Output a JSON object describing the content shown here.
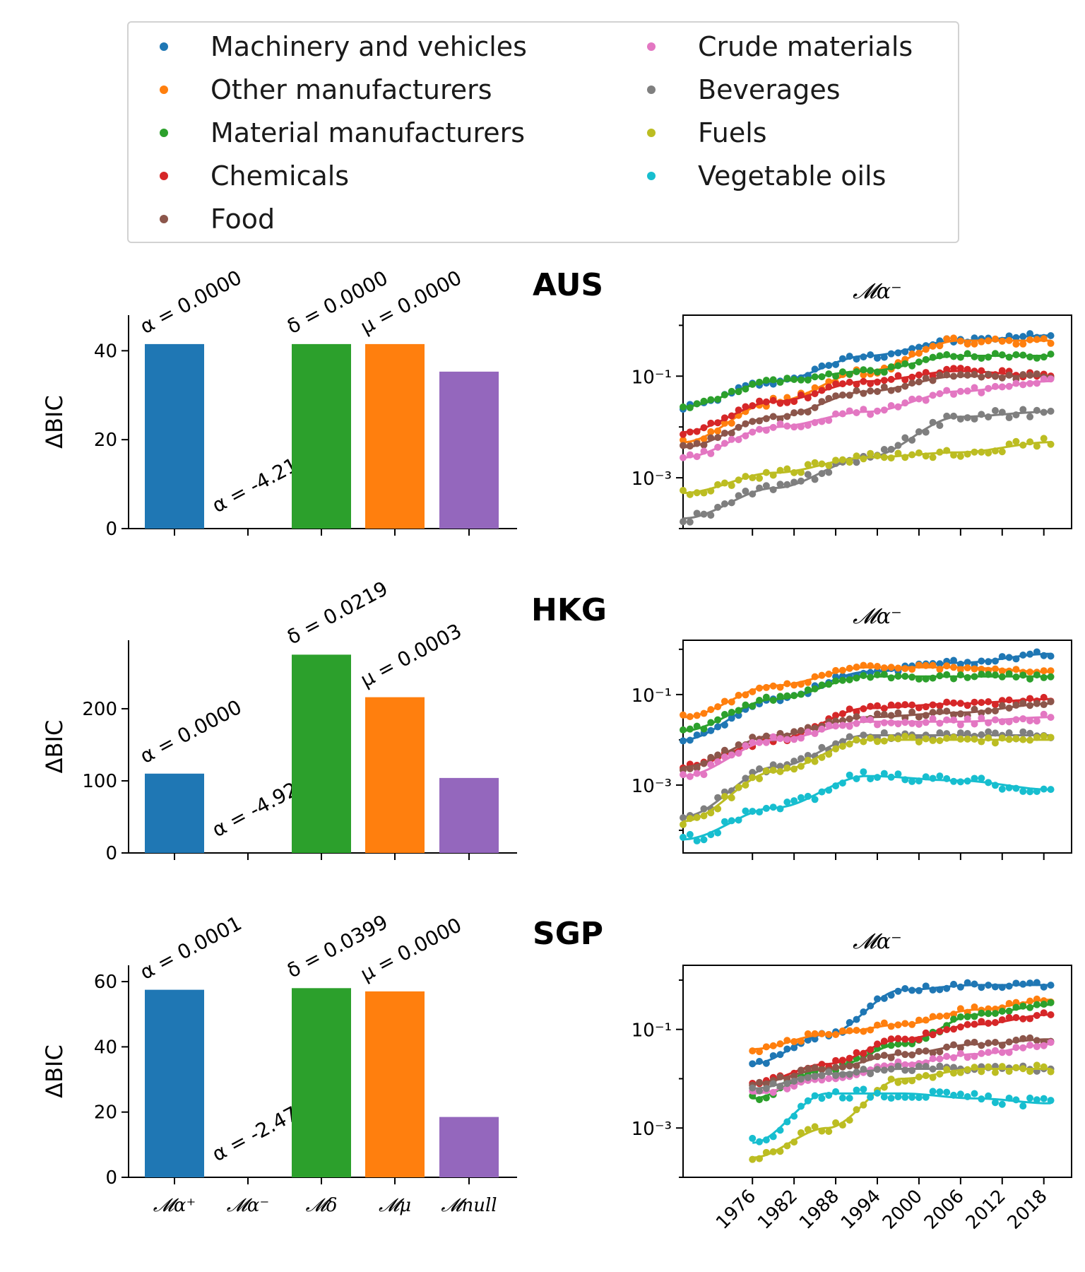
{
  "legend": {
    "items": [
      {
        "label": "Machinery and vehicles",
        "color": "#1f77b4"
      },
      {
        "label": "Other manufacturers",
        "color": "#ff7f0e"
      },
      {
        "label": "Material manufacturers",
        "color": "#2ca02c"
      },
      {
        "label": "Chemicals",
        "color": "#d62728"
      },
      {
        "label": "Food",
        "color": "#8c564b"
      },
      {
        "label": "Crude materials",
        "color": "#e377c2"
      },
      {
        "label": "Beverages",
        "color": "#7f7f7f"
      },
      {
        "label": "Fuels",
        "color": "#bcbd22"
      },
      {
        "label": "Vegetable oils",
        "color": "#17becf"
      }
    ]
  },
  "chart_data": [
    {
      "type": "bar",
      "panel": "AUS",
      "ylabel": "ΔBIC",
      "ylim": [
        0,
        48
      ],
      "yticks": [
        0,
        20,
        40
      ],
      "bars": [
        {
          "value": 41.5,
          "color": "#1f77b4",
          "annotation": "α = 0.0000",
          "note_pos": "top"
        },
        {
          "value": 0,
          "color": "#d62728",
          "annotation": "α = -4.2143",
          "note_pos": "low"
        },
        {
          "value": 41.5,
          "color": "#2ca02c",
          "annotation": "δ = 0.0000",
          "note_pos": "top"
        },
        {
          "value": 41.5,
          "color": "#ff7f0e",
          "annotation": "μ = 0.0000",
          "note_pos": "top"
        },
        {
          "value": 35.3,
          "color": "#9467bd",
          "annotation": "",
          "note_pos": "top"
        }
      ]
    },
    {
      "type": "line",
      "panel": "AUS",
      "title": "𝓜α⁻",
      "yscale": "log",
      "ylim_log10": [
        -4,
        0.2
      ],
      "yticks": [
        {
          "value": -1,
          "label": "10⁻¹"
        },
        {
          "value": -3,
          "label": "10⁻³"
        }
      ],
      "xlim": [
        1966,
        2022
      ],
      "series": [
        {
          "color": "#1f77b4",
          "start": 1966,
          "end": 2019,
          "fit": [
            -1.6,
            -1.1,
            -0.6,
            -0.3,
            -0.2
          ],
          "jitter": 0.06
        },
        {
          "color": "#ff7f0e",
          "start": 1966,
          "end": 2019,
          "fit": [
            -2.3,
            -1.5,
            -0.9,
            -0.3,
            -0.3
          ],
          "jitter": 0.08
        },
        {
          "color": "#2ca02c",
          "start": 1966,
          "end": 2019,
          "fit": [
            -1.6,
            -1.1,
            -0.9,
            -0.6,
            -0.6
          ],
          "jitter": 0.05
        },
        {
          "color": "#d62728",
          "start": 1966,
          "end": 2019,
          "fit": [
            -2.1,
            -1.5,
            -1.1,
            -0.9,
            -1.0
          ],
          "jitter": 0.06
        },
        {
          "color": "#8c564b",
          "start": 1966,
          "end": 2019,
          "fit": [
            -2.4,
            -1.8,
            -1.3,
            -1.0,
            -1.0
          ],
          "jitter": 0.06
        },
        {
          "color": "#e377c2",
          "start": 1966,
          "end": 2019,
          "fit": [
            -2.6,
            -2.0,
            -1.7,
            -1.3,
            -1.1
          ],
          "jitter": 0.06
        },
        {
          "color": "#7f7f7f",
          "start": 1966,
          "end": 2019,
          "fit": [
            -3.8,
            -3.2,
            -2.6,
            -1.8,
            -1.7
          ],
          "jitter": 0.09
        },
        {
          "color": "#bcbd22",
          "start": 1966,
          "end": 2019,
          "fit": [
            -3.3,
            -2.9,
            -2.6,
            -2.5,
            -2.3
          ],
          "jitter": 0.08
        }
      ]
    },
    {
      "type": "bar",
      "panel": "HKG",
      "ylabel": "ΔBIC",
      "ylim": [
        0,
        295
      ],
      "yticks": [
        0,
        100,
        200
      ],
      "bars": [
        {
          "value": 110,
          "color": "#1f77b4",
          "annotation": "α = 0.0000",
          "note_pos": "top"
        },
        {
          "value": 0,
          "color": "#d62728",
          "annotation": "α = -4.9263",
          "note_pos": "low"
        },
        {
          "value": 275,
          "color": "#2ca02c",
          "annotation": "δ = 0.0219",
          "note_pos": "top"
        },
        {
          "value": 216,
          "color": "#ff7f0e",
          "annotation": "μ = 0.0003",
          "note_pos": "top"
        },
        {
          "value": 104,
          "color": "#9467bd",
          "annotation": "",
          "note_pos": "top"
        }
      ]
    },
    {
      "type": "line",
      "panel": "HKG",
      "title": "𝓜α⁻",
      "yscale": "log",
      "ylim_log10": [
        -4.5,
        0.2
      ],
      "yticks": [
        {
          "value": -1,
          "label": "10⁻¹"
        },
        {
          "value": -3,
          "label": "10⁻³"
        }
      ],
      "xlim": [
        1966,
        2022
      ],
      "series": [
        {
          "color": "#1f77b4",
          "start": 1966,
          "end": 2019,
          "fit": [
            -2.0,
            -1.1,
            -0.5,
            -0.3,
            -0.1
          ],
          "jitter": 0.06
        },
        {
          "color": "#ff7f0e",
          "start": 1966,
          "end": 2019,
          "fit": [
            -1.5,
            -0.8,
            -0.4,
            -0.4,
            -0.5
          ],
          "jitter": 0.05
        },
        {
          "color": "#2ca02c",
          "start": 1966,
          "end": 2019,
          "fit": [
            -1.8,
            -1.1,
            -0.6,
            -0.6,
            -0.6
          ],
          "jitter": 0.06
        },
        {
          "color": "#d62728",
          "start": 1966,
          "end": 2019,
          "fit": [
            -2.6,
            -2.0,
            -1.3,
            -1.2,
            -1.1
          ],
          "jitter": 0.06
        },
        {
          "color": "#8c564b",
          "start": 1966,
          "end": 2019,
          "fit": [
            -2.6,
            -1.9,
            -1.5,
            -1.4,
            -1.2
          ],
          "jitter": 0.07
        },
        {
          "color": "#e377c2",
          "start": 1966,
          "end": 2019,
          "fit": [
            -2.8,
            -2.0,
            -1.6,
            -1.6,
            -1.5
          ],
          "jitter": 0.08
        },
        {
          "color": "#7f7f7f",
          "start": 1966,
          "end": 2019,
          "fit": [
            -3.7,
            -2.6,
            -1.9,
            -1.9,
            -1.9
          ],
          "jitter": 0.08
        },
        {
          "color": "#bcbd22",
          "start": 1966,
          "end": 2019,
          "fit": [
            -3.8,
            -2.7,
            -2.0,
            -2.0,
            -2.0
          ],
          "jitter": 0.08
        },
        {
          "color": "#17becf",
          "start": 1966,
          "end": 2019,
          "fit": [
            -4.2,
            -3.5,
            -2.8,
            -2.9,
            -3.1
          ],
          "jitter": 0.1
        }
      ]
    },
    {
      "type": "bar",
      "panel": "SGP",
      "ylabel": "ΔBIC",
      "ylim": [
        0,
        65
      ],
      "yticks": [
        0,
        20,
        40,
        60
      ],
      "xticklabels": [
        "𝓜α⁺",
        "𝓜α⁻",
        "𝓜δ",
        "𝓜μ",
        "𝓜null"
      ],
      "bars": [
        {
          "value": 57.5,
          "color": "#1f77b4",
          "annotation": "α = 0.0001",
          "note_pos": "top"
        },
        {
          "value": 0,
          "color": "#d62728",
          "annotation": "α = -2.4786",
          "note_pos": "low"
        },
        {
          "value": 58,
          "color": "#2ca02c",
          "annotation": "δ = 0.0399",
          "note_pos": "top"
        },
        {
          "value": 57,
          "color": "#ff7f0e",
          "annotation": "μ = 0.0000",
          "note_pos": "top"
        },
        {
          "value": 18.5,
          "color": "#9467bd",
          "annotation": "",
          "note_pos": "top"
        }
      ]
    },
    {
      "type": "line",
      "panel": "SGP",
      "title": "𝓜α⁻",
      "yscale": "log",
      "ylim_log10": [
        -4.0,
        0.3
      ],
      "yticks": [
        {
          "value": -1,
          "label": "10⁻¹"
        },
        {
          "value": -3,
          "label": "10⁻³"
        }
      ],
      "xlim": [
        1966,
        2022
      ],
      "xticklabels": [
        "1976",
        "1982",
        "1988",
        "1994",
        "2000",
        "2006",
        "2012",
        "2018"
      ],
      "series": [
        {
          "color": "#1f77b4",
          "start": 1976,
          "end": 2019,
          "fit": [
            -1.7,
            -1.1,
            -0.2,
            -0.1,
            -0.1
          ],
          "jitter": 0.06
        },
        {
          "color": "#ff7f0e",
          "start": 1976,
          "end": 2019,
          "fit": [
            -1.4,
            -1.1,
            -0.9,
            -0.6,
            -0.4
          ],
          "jitter": 0.06
        },
        {
          "color": "#2ca02c",
          "start": 1976,
          "end": 2019,
          "fit": [
            -2.4,
            -1.8,
            -1.3,
            -0.7,
            -0.5
          ],
          "jitter": 0.07
        },
        {
          "color": "#d62728",
          "start": 1976,
          "end": 2019,
          "fit": [
            -2.1,
            -1.7,
            -1.2,
            -0.9,
            -0.7
          ],
          "jitter": 0.06
        },
        {
          "color": "#8c564b",
          "start": 1976,
          "end": 2019,
          "fit": [
            -2.1,
            -1.8,
            -1.5,
            -1.3,
            -1.2
          ],
          "jitter": 0.06
        },
        {
          "color": "#e377c2",
          "start": 1976,
          "end": 2019,
          "fit": [
            -2.3,
            -2.0,
            -1.7,
            -1.5,
            -1.3
          ],
          "jitter": 0.06
        },
        {
          "color": "#7f7f7f",
          "start": 1976,
          "end": 2019,
          "fit": [
            -2.2,
            -1.9,
            -1.8,
            -1.8,
            -1.8
          ],
          "jitter": 0.06
        },
        {
          "color": "#bcbd22",
          "start": 1976,
          "end": 2019,
          "fit": [
            -3.6,
            -3.0,
            -2.0,
            -1.8,
            -1.8
          ],
          "jitter": 0.08
        },
        {
          "color": "#17becf",
          "start": 1976,
          "end": 2019,
          "fit": [
            -3.3,
            -2.3,
            -2.3,
            -2.4,
            -2.5
          ],
          "jitter": 0.1
        }
      ]
    }
  ],
  "countries": [
    "AUS",
    "HKG",
    "SGP"
  ]
}
